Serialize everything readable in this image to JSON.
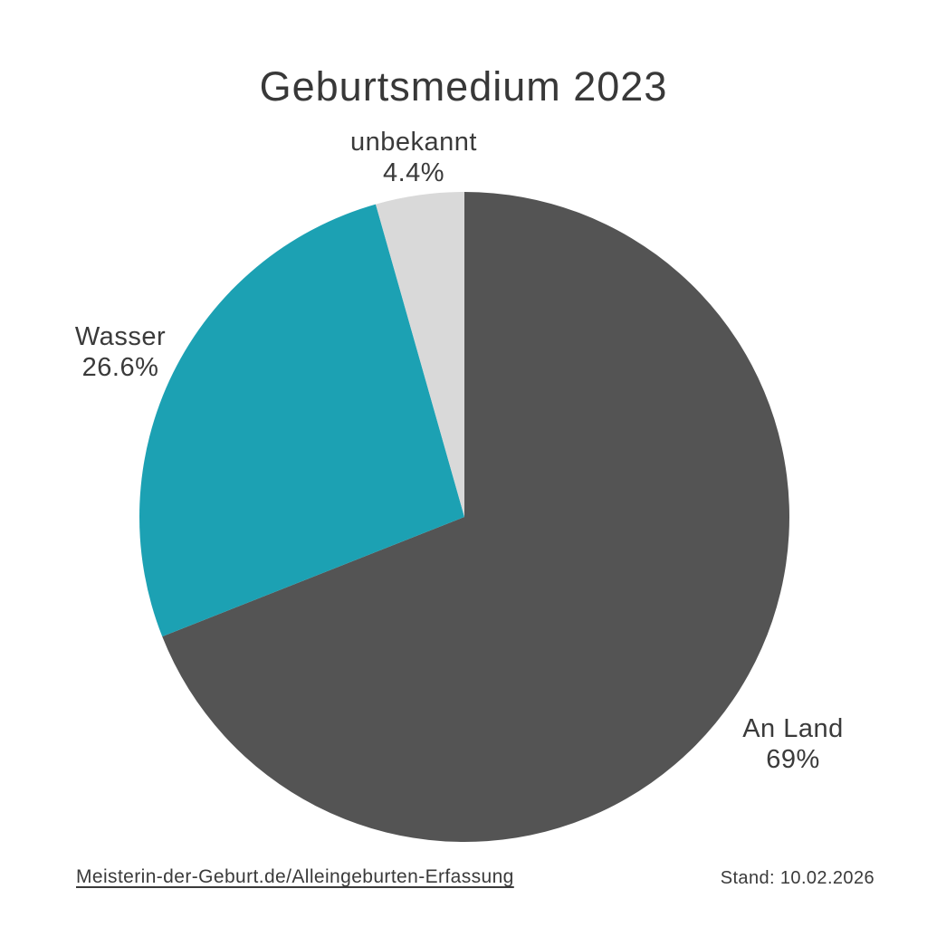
{
  "chart_data": {
    "type": "pie",
    "title": "Geburtsmedium 2023",
    "slices": [
      {
        "label": "An Land",
        "pct_label": "69%",
        "value": 69,
        "color": "#545454"
      },
      {
        "label": "Wasser",
        "pct_label": "26.6%",
        "value": 26.6,
        "color": "#1CA1B3"
      },
      {
        "label": "unbekannt",
        "pct_label": "4.4%",
        "value": 4.4,
        "color": "#D9D9D9"
      }
    ],
    "start_angle": "12-oclock",
    "direction": "clockwise",
    "legend": "none (direct labels outside slices)",
    "background": "#FFFFFF"
  },
  "footer": {
    "source_link": "Meisterin-der-Geburt.de/Alleingeburten-Erfassung",
    "stand": "Stand: 10.02.2026"
  }
}
